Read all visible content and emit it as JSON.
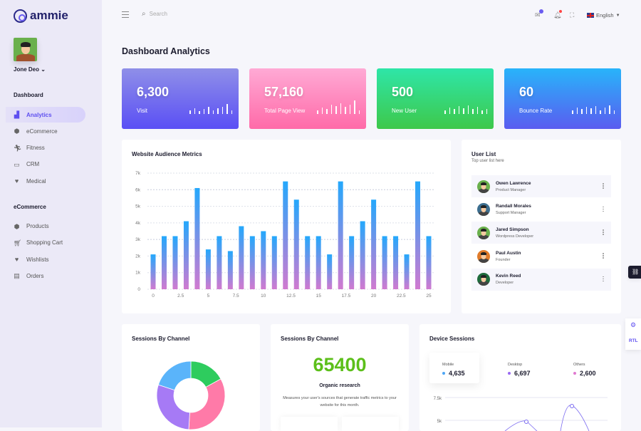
{
  "brand": {
    "name": "ammie"
  },
  "user": {
    "name": "Jone Deo"
  },
  "sidebar": {
    "sections": [
      {
        "title": "Dashboard",
        "items": [
          {
            "label": "Analytics",
            "icon": "chart-icon",
            "active": true
          },
          {
            "label": "eCommerce",
            "icon": "box-icon"
          },
          {
            "label": "Fitness",
            "icon": "runner-icon"
          },
          {
            "label": "CRM",
            "icon": "laptop-icon"
          },
          {
            "label": "Medical",
            "icon": "heartbeat-icon"
          }
        ]
      },
      {
        "title": "eCommerce",
        "items": [
          {
            "label": "Products",
            "icon": "box-icon"
          },
          {
            "label": "Shopping Cart",
            "icon": "cart-icon"
          },
          {
            "label": "Wishlists",
            "icon": "heart-icon"
          },
          {
            "label": "Orders",
            "icon": "clipboard-icon"
          }
        ]
      }
    ]
  },
  "header": {
    "search_placeholder": "Search",
    "language": "English"
  },
  "page": {
    "title": "Dashboard Analytics"
  },
  "stats": [
    {
      "value": "6,300",
      "label": "Visit",
      "gradient": [
        "#8f8fe8",
        "#5a4ff5"
      ]
    },
    {
      "value": "57,160",
      "label": "Total Page View",
      "gradient": [
        "#ffaad5",
        "#ff6aa8"
      ]
    },
    {
      "value": "500",
      "label": "New User",
      "gradient": [
        "#2ee6a8",
        "#3ec84a"
      ]
    },
    {
      "value": "60",
      "label": "Bounce Rate",
      "gradient": [
        "#28b4fa",
        "#5a5cf0"
      ]
    }
  ],
  "audience": {
    "title": "Website Audience Metrics"
  },
  "chart_data": {
    "type": "bar",
    "title": "Website Audience Metrics",
    "x": [
      0,
      1,
      2,
      3,
      4,
      5,
      6,
      7,
      8,
      9,
      10,
      11,
      12,
      13,
      14,
      15,
      16,
      17,
      18,
      19,
      20,
      21,
      22,
      23,
      24,
      25
    ],
    "values": [
      2100,
      3200,
      3200,
      4100,
      6100,
      2400,
      3200,
      2300,
      3800,
      3200,
      3500,
      3200,
      6500,
      5400,
      3200,
      3200,
      2100,
      6500,
      3200,
      4100,
      5400,
      3200,
      3200,
      2100,
      6500,
      3200
    ],
    "x_ticks": [
      "0",
      "2.5",
      "5",
      "7.5",
      "10",
      "12.5",
      "15",
      "17.5",
      "20",
      "22.5",
      "25"
    ],
    "y_ticks": [
      "0",
      "1k",
      "2k",
      "3k",
      "4k",
      "5k",
      "6k",
      "7k"
    ],
    "xlim": [
      0,
      25
    ],
    "ylim": [
      0,
      7000
    ],
    "grid": true,
    "colors": [
      "#24a8fc",
      "#d07ad0"
    ]
  },
  "user_list": {
    "title": "User List",
    "subtitle": "Top user list here",
    "users": [
      {
        "name": "Owen Lawrence",
        "role": "Product Manager",
        "color": "#6ab04c"
      },
      {
        "name": "Randall Morales",
        "role": "Support Manager",
        "color": "#3c6e8f"
      },
      {
        "name": "Jared Simpson",
        "role": "Wordpress Developer",
        "color": "#6ab04c"
      },
      {
        "name": "Paul Austin",
        "role": "Founder",
        "color": "#e07b2a"
      },
      {
        "name": "Kevin Reed",
        "role": "Developer",
        "color": "#1e6b3c"
      }
    ]
  },
  "sessions_donut": {
    "title": "Sessions By Channel",
    "segments": [
      {
        "pct": 17,
        "color": "#2ecc5e"
      },
      {
        "pct": 34,
        "color": "#ff7aa8"
      },
      {
        "pct": 29,
        "color": "#a67af5"
      },
      {
        "pct": 20,
        "color": "#5ab4fa"
      }
    ]
  },
  "sessions_organic": {
    "title": "Sessions By Channel",
    "value": "65400",
    "label": "Organic research",
    "description": "Measures your user's sources that generate traffic metrics to your website for this month."
  },
  "device_sessions": {
    "title": "Device Sessions",
    "items": [
      {
        "label": "Mobile",
        "value": "4,635",
        "color": "#4da6f5"
      },
      {
        "label": "Desktop",
        "value": "6,697",
        "color": "#9a6af2"
      },
      {
        "label": "Others",
        "value": "2,600",
        "color": "#e07ad0"
      }
    ],
    "y_ticks": [
      "7.5k",
      "5k"
    ]
  },
  "side_tools": {
    "rtl": "RTL"
  }
}
